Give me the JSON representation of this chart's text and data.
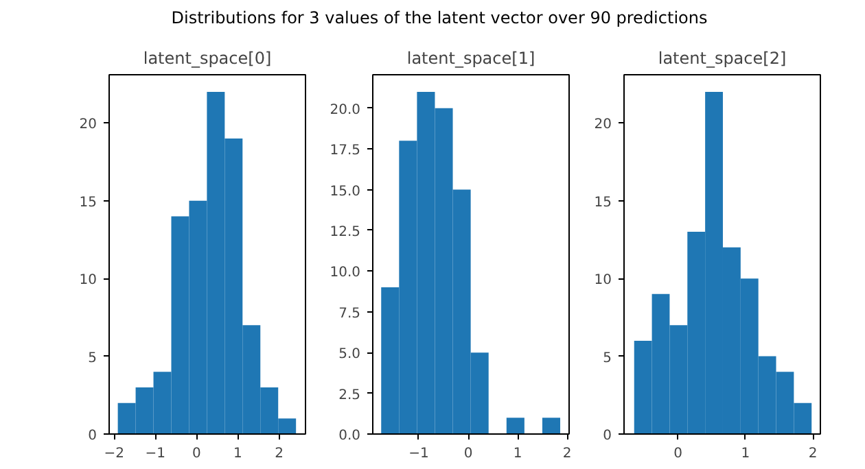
{
  "chart_data": [
    {
      "type": "histogram",
      "title": "latent_space[0]",
      "annotations": [
        "Distributions for 3 values of the latent vector over 90 predictions"
      ],
      "color": "#1f77b4",
      "bins": [
        -1.91,
        -1.478,
        -1.046,
        -0.614,
        -0.182,
        0.25,
        0.682,
        1.114,
        1.546,
        1.978,
        2.41
      ],
      "values": [
        2,
        3,
        4,
        14,
        15,
        22,
        19,
        7,
        3,
        1
      ],
      "xlim": [
        -2.12,
        2.64
      ],
      "ylim": [
        0,
        23.1
      ],
      "xticks": [
        -2,
        -1,
        0,
        1,
        2
      ],
      "yticks": [
        0,
        5,
        10,
        15,
        20
      ],
      "grid": false
    },
    {
      "type": "histogram",
      "title": "latent_space[1]",
      "color": "#1f77b4",
      "bins": [
        -1.76,
        -1.398,
        -1.036,
        -0.674,
        -0.312,
        0.05,
        0.412,
        0.774,
        1.136,
        1.498,
        1.86
      ],
      "values": [
        9,
        18,
        21,
        20,
        15,
        5,
        0,
        1,
        0,
        1
      ],
      "xlim": [
        -1.93,
        2.04
      ],
      "ylim": [
        0,
        22.05
      ],
      "xticks": [
        -1,
        0,
        1,
        2
      ],
      "yticks": [
        {
          "value": 0,
          "label": "0.0"
        },
        {
          "value": 2.5,
          "label": "2.5"
        },
        {
          "value": 5,
          "label": "5.0"
        },
        {
          "value": 7.5,
          "label": "7.5"
        },
        {
          "value": 10,
          "label": "10.0"
        },
        {
          "value": 12.5,
          "label": "12.5"
        },
        {
          "value": 15,
          "label": "15.0"
        },
        {
          "value": 17.5,
          "label": "17.5"
        },
        {
          "value": 20,
          "label": "20.0"
        }
      ],
      "grid": false
    },
    {
      "type": "histogram",
      "title": "latent_space[2]",
      "color": "#1f77b4",
      "bins": [
        -0.65,
        -0.387,
        -0.124,
        0.139,
        0.402,
        0.665,
        0.928,
        1.191,
        1.454,
        1.717,
        1.98
      ],
      "values": [
        6,
        9,
        7,
        13,
        22,
        12,
        10,
        5,
        4,
        2
      ],
      "xlim": [
        -0.8,
        2.11
      ],
      "ylim": [
        0,
        23.1
      ],
      "xticks": [
        0,
        1,
        2
      ],
      "yticks": [
        0,
        5,
        10,
        15,
        20
      ],
      "grid": false
    }
  ]
}
